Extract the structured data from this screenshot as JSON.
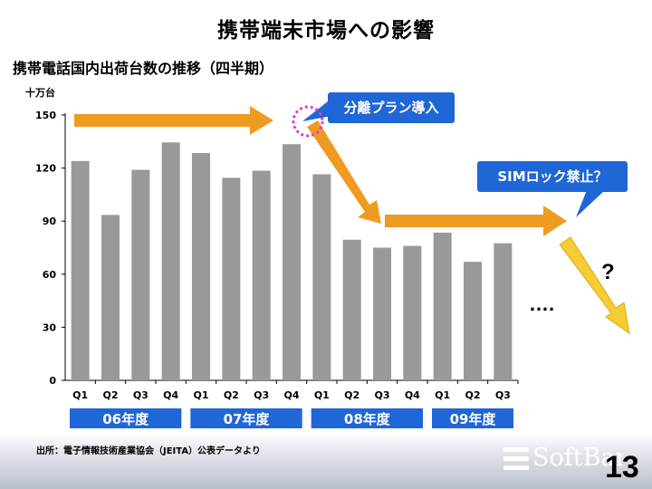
{
  "page": {
    "title": "携帯端末市場への影響",
    "source": "出所：電子情報技術産業協会（JEITA）公表データより",
    "page_number": "13",
    "logo_text": "SoftBank"
  },
  "annotations": {
    "callout_1": "分離プラン導入",
    "callout_2": "SIMロック禁止？",
    "question_mark": "?",
    "ellipsis": "…."
  },
  "colors": {
    "bar": "#999999",
    "arrow_orange": "#ee9b22",
    "arrow_yellow": "#f3cd32",
    "callout_blue": "#1f66d6",
    "year_band": "#1f66d6",
    "dotted_circle": "#d742d6"
  },
  "chart_data": {
    "type": "bar",
    "title": "携帯電話国内出荷台数の推移（四半期）",
    "ylabel": "十万台",
    "ylim": [
      0,
      150
    ],
    "yticks": [
      0,
      30,
      60,
      90,
      120,
      150
    ],
    "categories": [
      "Q1",
      "Q2",
      "Q3",
      "Q4",
      "Q1",
      "Q2",
      "Q3",
      "Q4",
      "Q1",
      "Q2",
      "Q3",
      "Q4",
      "Q1",
      "Q2",
      "Q3"
    ],
    "values": [
      124,
      93.5,
      119,
      134.5,
      128.5,
      114.5,
      118.5,
      133.5,
      116.5,
      79.5,
      75,
      76,
      83.5,
      67,
      77.5
    ],
    "groups": [
      {
        "label": "06年度",
        "count": 4
      },
      {
        "label": "07年度",
        "count": 4
      },
      {
        "label": "08年度",
        "count": 4
      },
      {
        "label": "09年度",
        "count": 3
      }
    ]
  }
}
